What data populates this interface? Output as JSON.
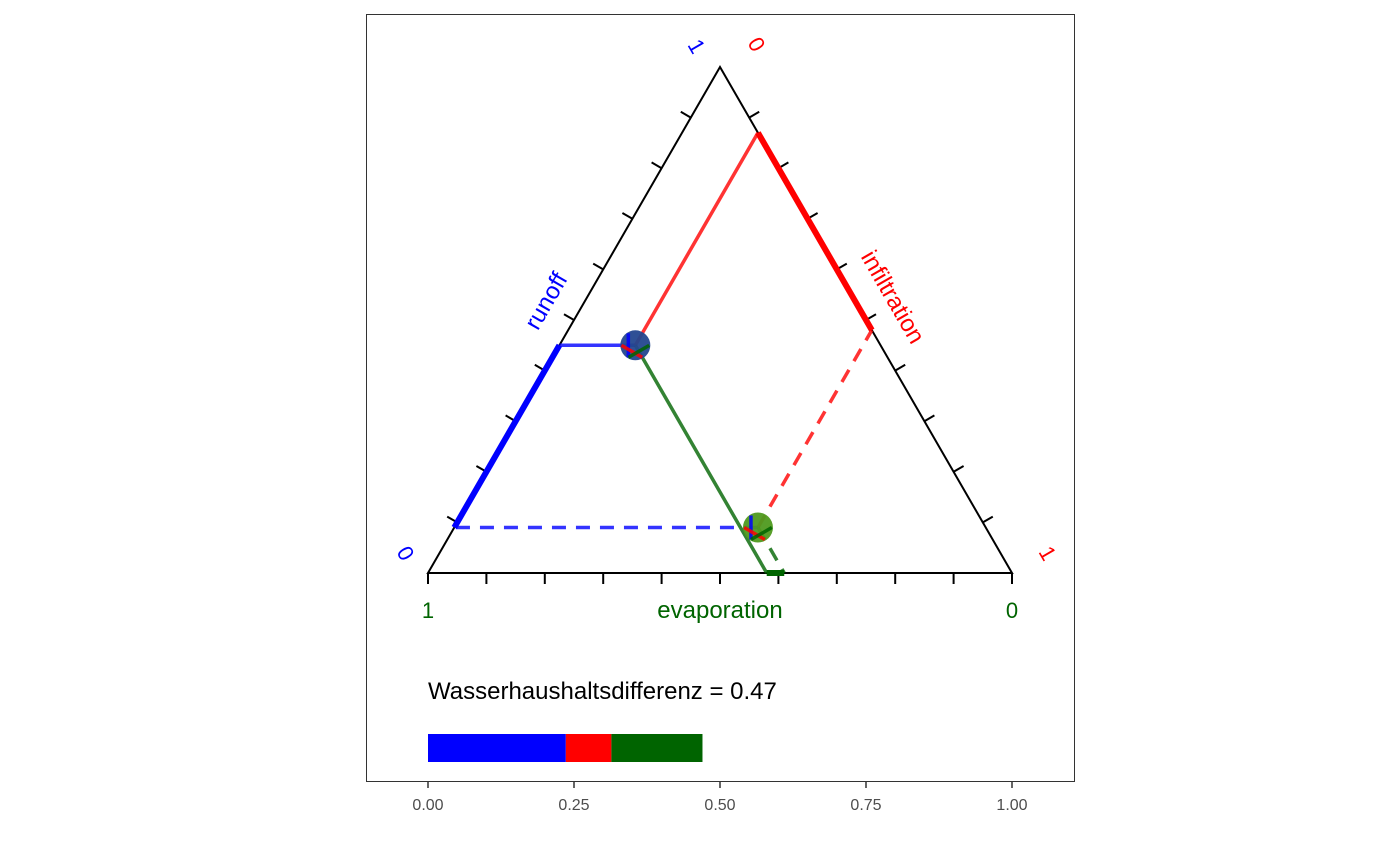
{
  "colors": {
    "runoff": "#0000ff",
    "infiltration": "#ff0000",
    "evaporation": "#006400",
    "point_fill_1": "#24478f",
    "point_fill_2": "#4f9a1f",
    "frame": "#333333",
    "triangle": "#000000"
  },
  "chart_data": {
    "type": "ternary",
    "title": "",
    "axes": {
      "runoff": {
        "label": "runoff",
        "min_label": "0",
        "max_label": "1"
      },
      "infiltration": {
        "label": "infiltration",
        "min_label": "0",
        "max_label": "1"
      },
      "evaporation": {
        "label": "evaporation",
        "min_label": "0",
        "max_label": "1"
      }
    },
    "tick_step": 0.1,
    "points": [
      {
        "runoff": 0.45,
        "infiltration": 0.13,
        "evaporation": 0.42
      },
      {
        "runoff": 0.09,
        "infiltration": 0.52,
        "evaporation": 0.39
      }
    ],
    "difference": {
      "label": "Wasserhaushaltsdifferenz = 0.47",
      "value": 0.47,
      "segments": [
        {
          "component": "runoff",
          "value": 0.236
        },
        {
          "component": "infiltration",
          "value": 0.078
        },
        {
          "component": "evaporation",
          "value": 0.156
        }
      ],
      "x_ticks": [
        "0.00",
        "0.25",
        "0.50",
        "0.75",
        "1.00"
      ],
      "xlim": [
        -0.1,
        1.1
      ]
    }
  }
}
